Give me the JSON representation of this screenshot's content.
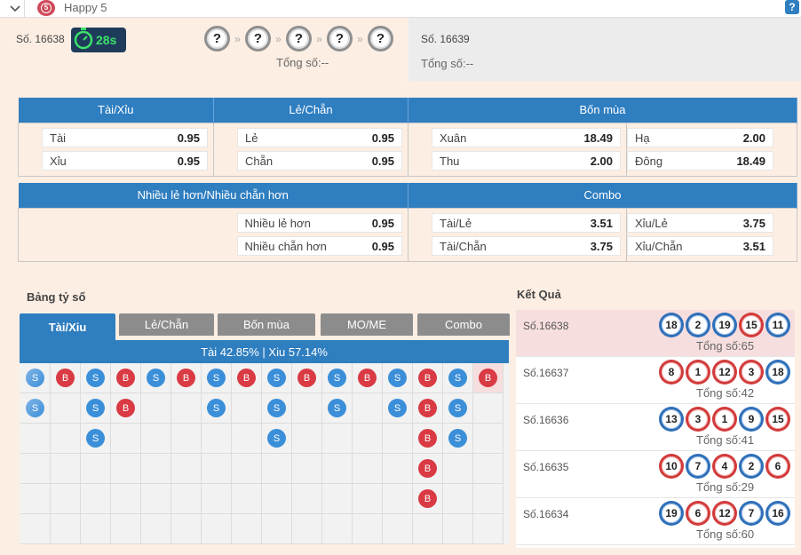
{
  "topbar": {
    "title": "Happy 5",
    "logo_text": "5",
    "help": "?"
  },
  "current": {
    "draw_no": "Số. 16638",
    "countdown": "28s",
    "balls": [
      "?",
      "?",
      "?",
      "?",
      "?"
    ],
    "arrow": "»",
    "total": "Tổng số:--"
  },
  "next": {
    "draw_no": "Số. 16639",
    "total": "Tổng số:--"
  },
  "odds1": {
    "headers": [
      "Tài/Xỉu",
      "Lẻ/Chẵn",
      "Bốn mùa"
    ],
    "tai": {
      "label": "Tài",
      "odd": "0.95"
    },
    "xiu": {
      "label": "Xỉu",
      "odd": "0.95"
    },
    "le": {
      "label": "Lẻ",
      "odd": "0.95"
    },
    "chan": {
      "label": "Chẵn",
      "odd": "0.95"
    },
    "xuan": {
      "label": "Xuân",
      "odd": "18.49"
    },
    "thu": {
      "label": "Thu",
      "odd": "2.00"
    },
    "ha": {
      "label": "Hạ",
      "odd": "2.00"
    },
    "dong": {
      "label": "Đông",
      "odd": "18.49"
    }
  },
  "odds2": {
    "headers": [
      "Nhiều lẻ hơn/Nhiều chẵn hơn",
      "Combo"
    ],
    "nhieu_le": {
      "label": "Nhiều lẻ hơn",
      "odd": "0.95"
    },
    "nhieu_chan": {
      "label": "Nhiều chẵn hơn",
      "odd": "0.95"
    },
    "tai_le": {
      "label": "Tài/Lẻ",
      "odd": "3.51"
    },
    "tai_chan": {
      "label": "Tài/Chẵn",
      "odd": "3.75"
    },
    "xiu_le": {
      "label": "Xỉu/Lẻ",
      "odd": "3.75"
    },
    "xiu_chan": {
      "label": "Xỉu/Chẵn",
      "odd": "3.51"
    }
  },
  "scoreboard": {
    "title": "Bảng tỷ số",
    "tabs": [
      "Tài/Xiu",
      "Lẻ/Chẵn",
      "Bốn mùa",
      "MO/ME",
      "Combo"
    ],
    "ratio": "Tài 42.85% | Xiu 57.14%",
    "columns": [
      [
        "S",
        "S"
      ],
      [
        "B"
      ],
      [
        "S",
        "S",
        "S"
      ],
      [
        "B",
        "B"
      ],
      [
        "S"
      ],
      [
        "B"
      ],
      [
        "S",
        "S"
      ],
      [
        "B"
      ],
      [
        "S",
        "S",
        "S"
      ],
      [
        "B"
      ],
      [
        "S",
        "S"
      ],
      [
        "B"
      ],
      [
        "S",
        "S"
      ],
      [
        "B",
        "B",
        "B",
        "B",
        "B"
      ],
      [
        "S",
        "S",
        "S"
      ],
      [
        "B"
      ]
    ]
  },
  "results": {
    "title": "Kết Quả",
    "rows": [
      {
        "no": "Số.16638",
        "balls": [
          "18",
          "2",
          "19",
          "15",
          "11"
        ],
        "colors": [
          "blue",
          "blue",
          "blue",
          "red",
          "blue"
        ],
        "total": "Tổng số:65"
      },
      {
        "no": "Số.16637",
        "balls": [
          "8",
          "1",
          "12",
          "3",
          "18"
        ],
        "colors": [
          "red",
          "red",
          "red",
          "red",
          "blue"
        ],
        "total": "Tổng số:42"
      },
      {
        "no": "Số.16636",
        "balls": [
          "13",
          "3",
          "1",
          "9",
          "15"
        ],
        "colors": [
          "blue",
          "red",
          "red",
          "blue",
          "red"
        ],
        "total": "Tổng số:41"
      },
      {
        "no": "Số.16635",
        "balls": [
          "10",
          "7",
          "4",
          "2",
          "6"
        ],
        "colors": [
          "red",
          "blue",
          "red",
          "blue",
          "red"
        ],
        "total": "Tổng số:29"
      },
      {
        "no": "Số.16634",
        "balls": [
          "19",
          "6",
          "12",
          "7",
          "16"
        ],
        "colors": [
          "blue",
          "red",
          "red",
          "blue",
          "blue"
        ],
        "total": "Tổng số:60"
      }
    ]
  }
}
